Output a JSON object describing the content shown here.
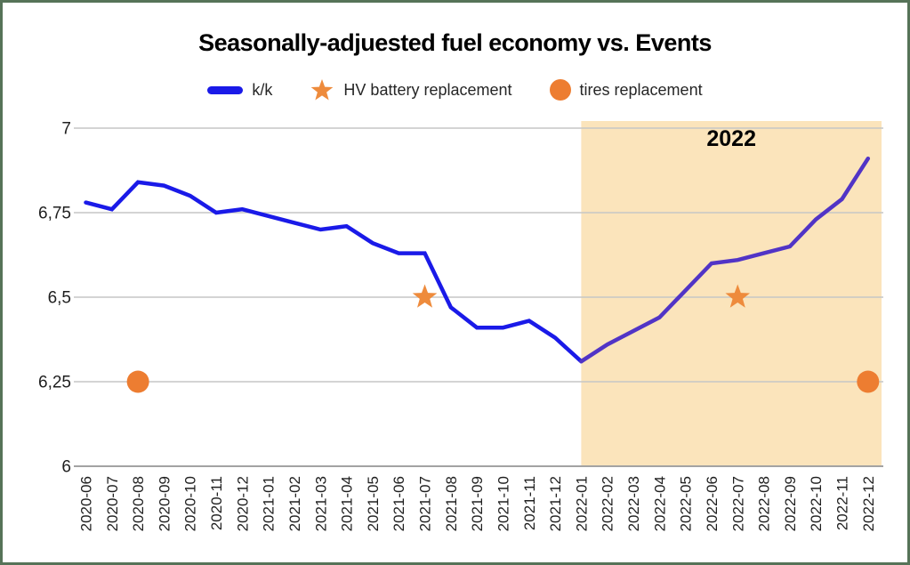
{
  "frame": {
    "border_color": "#567358"
  },
  "title": "Seasonally-adjuested fuel economy vs. Events",
  "legend": {
    "items": [
      {
        "type": "line",
        "label": "k/k",
        "color": "#1A1AE8"
      },
      {
        "type": "star",
        "label": "HV battery replacement",
        "color": "#EE8B3C"
      },
      {
        "type": "circle",
        "label": "tires replacement",
        "color": "#ED7D31"
      }
    ]
  },
  "chart_data": {
    "type": "line",
    "title": "Seasonally-adjuested fuel economy vs. Events",
    "x": [
      "2020-06",
      "2020-07",
      "2020-08",
      "2020-09",
      "2020-10",
      "2020-11",
      "2020-12",
      "2021-01",
      "2021-02",
      "2021-03",
      "2021-04",
      "2021-05",
      "2021-06",
      "2021-07",
      "2021-08",
      "2021-09",
      "2021-10",
      "2021-11",
      "2021-12",
      "2022-01",
      "2022-02",
      "2022-03",
      "2022-04",
      "2022-05",
      "2022-06",
      "2022-07",
      "2022-08",
      "2022-09",
      "2022-10",
      "2022-11",
      "2022-12"
    ],
    "series": [
      {
        "name": "k/k",
        "color": "#1A1AE8",
        "color_in_highlight": "#5134C6",
        "values": [
          6.78,
          6.76,
          6.84,
          6.83,
          6.8,
          6.75,
          6.76,
          6.74,
          6.72,
          6.7,
          6.71,
          6.66,
          6.63,
          6.63,
          6.47,
          6.41,
          6.41,
          6.43,
          6.38,
          6.31,
          6.36,
          6.4,
          6.44,
          6.52,
          6.6,
          6.61,
          6.63,
          6.65,
          6.73,
          6.79,
          6.91
        ]
      }
    ],
    "events": [
      {
        "name": "HV battery replacement",
        "marker": "star",
        "color": "#EE8B3C",
        "points": [
          {
            "x": "2021-07",
            "y": 6.5
          },
          {
            "x": "2022-07",
            "y": 6.5
          }
        ]
      },
      {
        "name": "tires replacement",
        "marker": "circle",
        "color": "#ED7D31",
        "points": [
          {
            "x": "2020-08",
            "y": 6.25
          },
          {
            "x": "2022-12",
            "y": 6.25
          }
        ]
      }
    ],
    "ylim": [
      6,
      7
    ],
    "yticks": [
      {
        "v": 6,
        "label": "6"
      },
      {
        "v": 6.25,
        "label": "6,25"
      },
      {
        "v": 6.5,
        "label": "6,5"
      },
      {
        "v": 6.75,
        "label": "6,75"
      },
      {
        "v": 7,
        "label": "7"
      }
    ],
    "grid": true,
    "legend_position": "top",
    "highlight": {
      "label": "2022",
      "start": "2022-01",
      "end": "2022-12",
      "color": "#FBE4BB",
      "label_color": "#000000"
    },
    "colors": {
      "gridline": "#C6C6C6",
      "axis_line": "#A3A3A3",
      "tick_label": "#1F1F1F"
    }
  }
}
